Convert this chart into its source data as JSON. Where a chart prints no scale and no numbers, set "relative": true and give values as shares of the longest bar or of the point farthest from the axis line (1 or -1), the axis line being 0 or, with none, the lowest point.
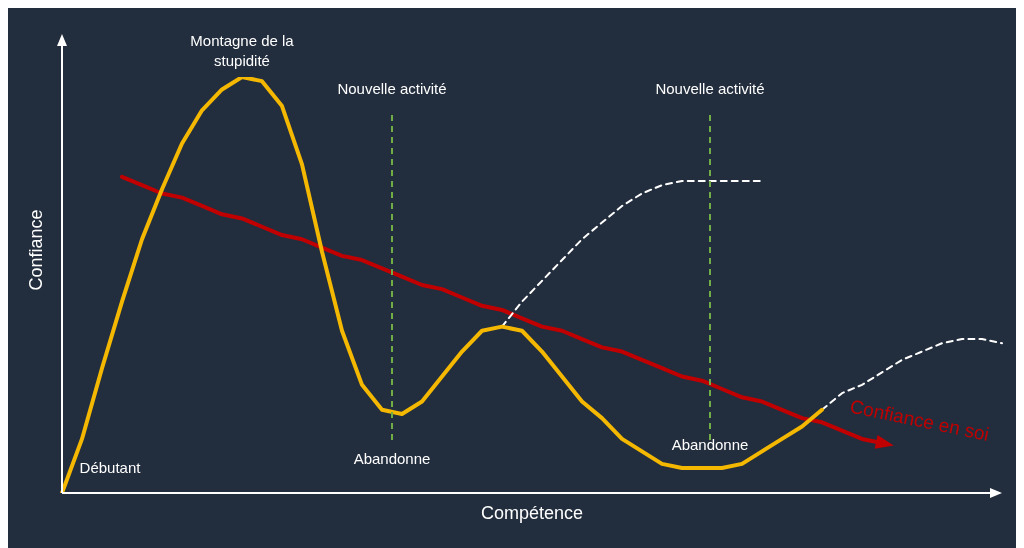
{
  "chart_data": {
    "type": "line",
    "relative": true,
    "xlabel": "Compétence",
    "ylabel": "Confiance",
    "marker": "none",
    "categories": [
      null,
      null,
      null,
      null,
      null,
      null,
      null,
      null,
      null,
      null,
      null,
      null,
      null,
      null,
      null,
      null,
      null,
      null,
      null,
      null,
      null,
      null,
      null,
      null,
      null,
      null,
      null,
      null,
      null,
      null,
      null,
      null,
      null,
      null,
      null,
      null,
      null,
      null,
      null,
      null,
      null,
      null,
      null,
      null,
      null,
      null,
      null,
      null
    ],
    "series": [
      {
        "type": "line",
        "color": "#f5b800",
        "line_style": "solid",
        "values": [
          0,
          0.13,
          0.3,
          0.46,
          0.61,
          0.73,
          0.84,
          0.92,
          0.97,
          1,
          0.99,
          0.93,
          0.79,
          0.58,
          0.39,
          0.26,
          0.2,
          0.19,
          0.22,
          0.28,
          0.34,
          0.39,
          0.4,
          0.39,
          0.34,
          0.28,
          0.22,
          0.18,
          0.13,
          0.1,
          0.07,
          0.06,
          0.06,
          0.06,
          0.07,
          0.1,
          0.13,
          0.16,
          0.2,
          null,
          null,
          null,
          null,
          null,
          null,
          null,
          null,
          null
        ]
      },
      {
        "type": "line",
        "color": "#ffffff",
        "line_style": "dashed",
        "values": [
          null,
          null,
          null,
          null,
          null,
          null,
          null,
          null,
          null,
          null,
          null,
          null,
          null,
          null,
          null,
          null,
          null,
          null,
          null,
          null,
          null,
          null,
          0.4,
          0.46,
          0.51,
          0.56,
          0.61,
          0.65,
          0.69,
          0.72,
          0.74,
          0.75,
          0.75,
          0.75,
          0.75,
          0.75,
          null,
          null,
          null,
          null,
          null,
          null,
          null,
          null,
          null,
          null,
          null,
          null
        ]
      },
      {
        "type": "line",
        "color": "#ffffff",
        "line_style": "dashed",
        "values": [
          null,
          null,
          null,
          null,
          null,
          null,
          null,
          null,
          null,
          null,
          null,
          null,
          null,
          null,
          null,
          null,
          null,
          null,
          null,
          null,
          null,
          null,
          null,
          null,
          null,
          null,
          null,
          null,
          null,
          null,
          null,
          null,
          null,
          null,
          null,
          null,
          null,
          null,
          0.2,
          0.24,
          0.26,
          0.29,
          0.32,
          0.34,
          0.36,
          0.37,
          0.37,
          0.36
        ]
      },
      {
        "type": "line",
        "name": "Confiance en soi",
        "color": "#c00000",
        "line_style": "solid",
        "values": [
          null,
          null,
          null,
          0.76,
          0.74,
          0.72,
          0.71,
          0.69,
          0.67,
          0.66,
          0.64,
          0.62,
          0.61,
          0.59,
          0.57,
          0.56,
          0.54,
          0.52,
          0.5,
          0.49,
          0.47,
          0.45,
          0.44,
          0.42,
          0.4,
          0.39,
          0.37,
          0.35,
          0.34,
          0.32,
          0.3,
          0.28,
          0.27,
          0.25,
          0.23,
          0.22,
          0.2,
          0.18,
          0.17,
          0.15,
          0.13,
          0.12,
          null,
          null,
          null,
          null,
          null,
          null
        ]
      }
    ],
    "annotations": [
      "Montagne de la stupidité",
      "Nouvelle activité",
      "Nouvelle activité",
      "Débutant",
      "Abandonne",
      "Abandonne"
    ]
  }
}
